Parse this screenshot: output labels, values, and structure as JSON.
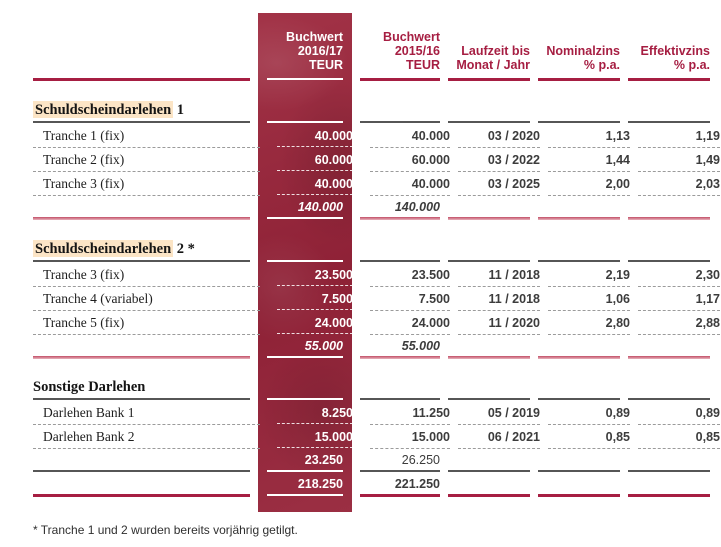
{
  "header": {
    "columns": [
      {
        "name": "buchwert-2016-17",
        "lines": [
          "Buchwert",
          "2016/17",
          "TEUR"
        ]
      },
      {
        "name": "buchwert-2015-16",
        "lines": [
          "Buchwert",
          "2015/16",
          "TEUR"
        ]
      },
      {
        "name": "laufzeit",
        "lines": [
          "Laufzeit bis",
          "Monat / Jahr"
        ]
      },
      {
        "name": "nominalzins",
        "lines": [
          "Nominalzins",
          "% p.a."
        ]
      },
      {
        "name": "effektivzins",
        "lines": [
          "Effektivzins",
          "% p.a."
        ]
      }
    ]
  },
  "sections": [
    {
      "title_highlight": "Schuldscheindarlehen",
      "title_rest": " 1",
      "rows": [
        {
          "label": "Tranche 1 (fix)",
          "bw1617": "40.000",
          "bw1516": "40.000",
          "laufzeit": "03 / 2020",
          "nominal": "1,13",
          "effektiv": "1,19"
        },
        {
          "label": "Tranche 2 (fix)",
          "bw1617": "60.000",
          "bw1516": "60.000",
          "laufzeit": "03 / 2022",
          "nominal": "1,44",
          "effektiv": "1,49"
        },
        {
          "label": "Tranche 3 (fix)",
          "bw1617": "40.000",
          "bw1516": "40.000",
          "laufzeit": "03 / 2025",
          "nominal": "2,00",
          "effektiv": "2,03"
        }
      ],
      "subtotal": {
        "bw1617": "140.000",
        "bw1516": "140.000"
      }
    },
    {
      "title_highlight": "Schuldscheindarlehen",
      "title_rest": " 2 *",
      "rows": [
        {
          "label": "Tranche 3 (fix)",
          "bw1617": "23.500",
          "bw1516": "23.500",
          "laufzeit": "11 / 2018",
          "nominal": "2,19",
          "effektiv": "2,30"
        },
        {
          "label": "Tranche 4 (variabel)",
          "bw1617": "7.500",
          "bw1516": "7.500",
          "laufzeit": "11 / 2018",
          "nominal": "1,06",
          "effektiv": "1,17"
        },
        {
          "label": "Tranche 5 (fix)",
          "bw1617": "24.000",
          "bw1516": "24.000",
          "laufzeit": "11 / 2020",
          "nominal": "2,80",
          "effektiv": "2,88"
        }
      ],
      "subtotal": {
        "bw1617": "55.000",
        "bw1516": "55.000"
      }
    },
    {
      "title_highlight": "",
      "title_rest": "Sonstige Darlehen",
      "rows": [
        {
          "label": "Darlehen Bank 1",
          "bw1617": "8.250",
          "bw1516": "11.250",
          "laufzeit": "05 / 2019",
          "nominal": "0,89",
          "effektiv": "0,89"
        },
        {
          "label": "Darlehen Bank 2",
          "bw1617": "15.000",
          "bw1516": "15.000",
          "laufzeit": "06 / 2021",
          "nominal": "0,85",
          "effektiv": "0,85"
        }
      ],
      "subtotal": {
        "bw1617": "23.250",
        "bw1516": "26.250"
      }
    }
  ],
  "grand_total": {
    "bw1617": "218.250",
    "bw1516": "221.250"
  },
  "footnote": "* Tranche 1 und 2 wurden bereits vorjährig getilgt.",
  "colors": {
    "accent": "#A61E42",
    "band": "#9B2F43",
    "highlight": "#FCE5C6"
  }
}
